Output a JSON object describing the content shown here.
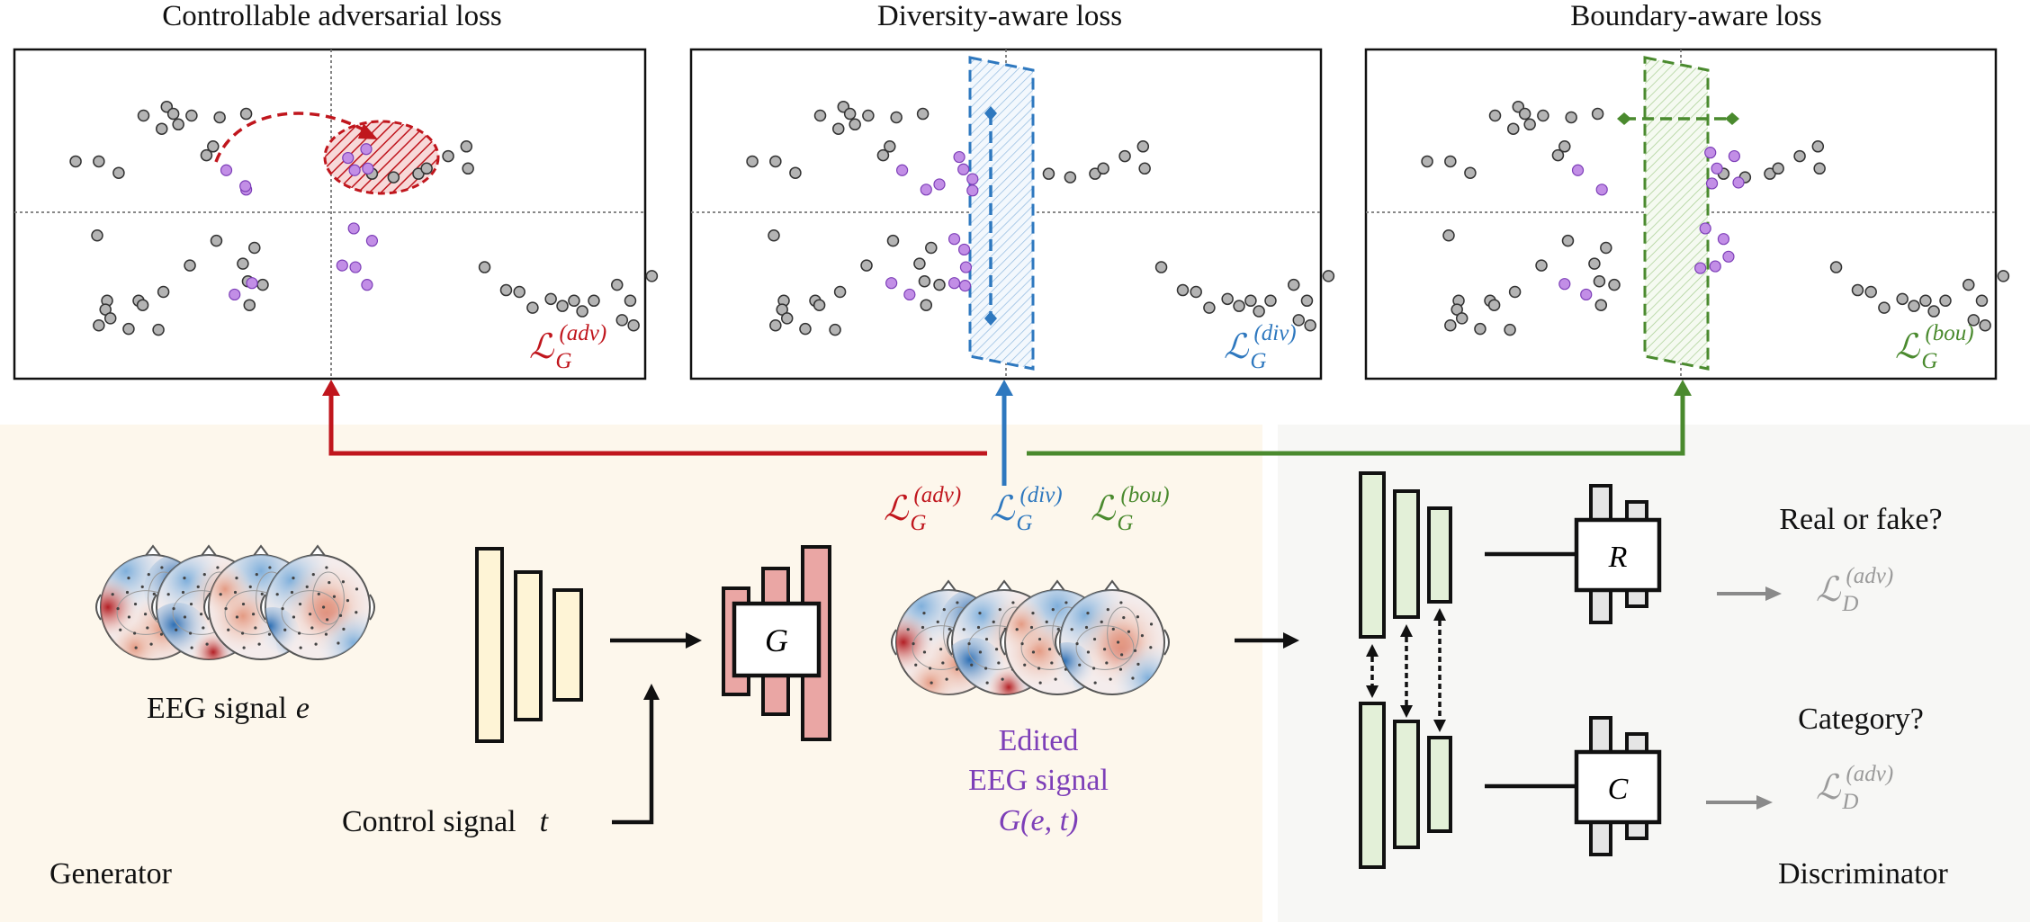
{
  "panels": [
    {
      "title": "Controllable adversarial loss",
      "loss_sup": "(adv)",
      "color": "#c0161d"
    },
    {
      "title": "Diversity-aware loss",
      "loss_sup": "(div)",
      "color": "#2e78bf"
    },
    {
      "title": "Boundary-aware loss",
      "loss_sup": "(bou)",
      "color": "#4a8a2e"
    }
  ],
  "loss_symbol": "ℒ",
  "generator_sub": "G",
  "discriminator_sub": "D",
  "eeg_label": "EEG signal",
  "eeg_var": "e",
  "control_label": "Control signal",
  "control_var": "t",
  "generator_box": "G",
  "edited_line1": "Edited",
  "edited_line2": "EEG signal",
  "edited_line3": "G(e, t)",
  "generator_label": "Generator",
  "discriminator_label": "Discriminator",
  "real_fake": "Real or fake?",
  "category": "Category?",
  "r_box": "R",
  "c_box": "C",
  "colors": {
    "generator_bg": "#fdf7ec",
    "discriminator_bg": "#f7f7f5",
    "encoder_fill": "#fef4d6",
    "generator_fill": "#eaa6a4",
    "disc_fill": "#e3f0d8",
    "gray_point": "#b4b4b4",
    "purple_point": "#c28ee6"
  }
}
